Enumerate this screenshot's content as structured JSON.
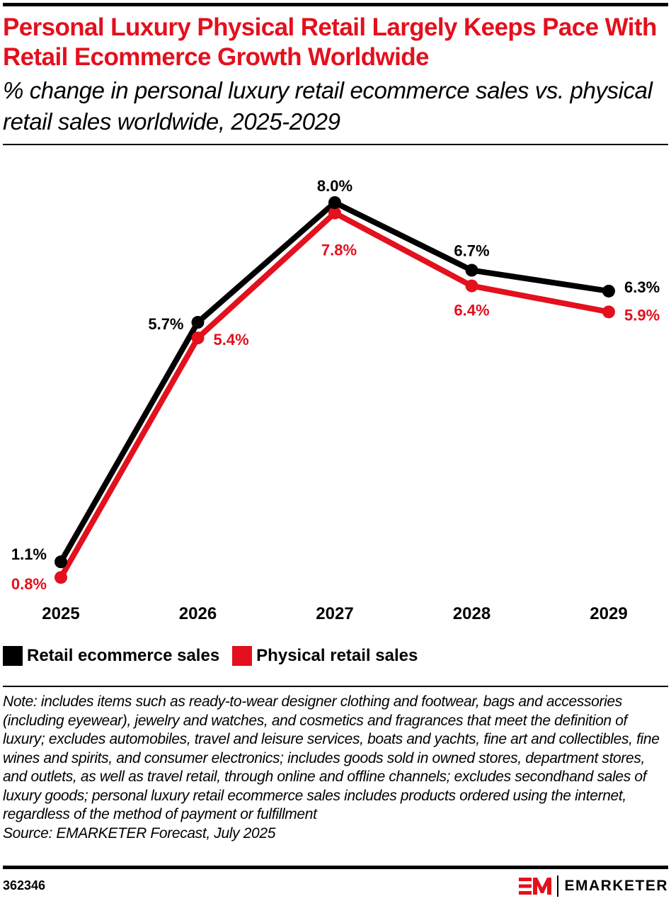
{
  "header": {
    "title": "Personal Luxury Physical Retail Largely Keeps Pace With Retail Ecommerce Growth Worldwide",
    "subtitle": "% change in personal luxury retail ecommerce sales vs. physical retail sales worldwide, 2025-2029"
  },
  "colors": {
    "accent": "#e3101d",
    "series_ecommerce": "#000000",
    "series_physical": "#e3101d"
  },
  "chart_data": {
    "type": "line",
    "title": "Personal Luxury Physical Retail Largely Keeps Pace With Retail Ecommerce Growth Worldwide",
    "subtitle": "% change in personal luxury retail ecommerce sales vs. physical retail sales worldwide, 2025-2029",
    "xlabel": "",
    "ylabel": "",
    "x": [
      "2025",
      "2026",
      "2027",
      "2028",
      "2029"
    ],
    "series": [
      {
        "name": "Retail ecommerce sales",
        "color": "#000000",
        "values": [
          1.1,
          5.7,
          8.0,
          6.7,
          6.3
        ],
        "labels": [
          "1.1%",
          "5.7%",
          "8.0%",
          "6.7%",
          "6.3%"
        ]
      },
      {
        "name": "Physical retail sales",
        "color": "#e3101d",
        "values": [
          0.8,
          5.4,
          7.8,
          6.4,
          5.9
        ],
        "labels": [
          "0.8%",
          "5.4%",
          "7.8%",
          "6.4%",
          "5.9%"
        ]
      }
    ],
    "ylim": [
      0,
      8.0
    ],
    "grid": false,
    "y_axis_visible": false,
    "legend_position": "bottom-left"
  },
  "legend": [
    {
      "label": "Retail ecommerce sales",
      "color": "#000000"
    },
    {
      "label": "Physical retail sales",
      "color": "#e3101d"
    }
  ],
  "footer": {
    "note": "Note: includes items such as ready-to-wear designer clothing and footwear, bags and accessories (including eyewear), jewelry and watches, and cosmetics and fragrances that meet the definition of luxury; excludes automobiles, travel and leisure services, boats and yachts, fine art and collectibles, fine wines and spirits, and consumer electronics; includes goods sold in owned stores, department stores, and outlets, as well as travel retail, through online and offline channels; excludes secondhand sales of luxury goods; personal luxury retail ecommerce sales includes products ordered using the internet, regardless of the method of payment or fulfillment",
    "source": "Source: EMARKETER Forecast, July 2025",
    "chart_id": "362346",
    "logo_mark": "EM",
    "logo_text": "EMARKETER"
  }
}
